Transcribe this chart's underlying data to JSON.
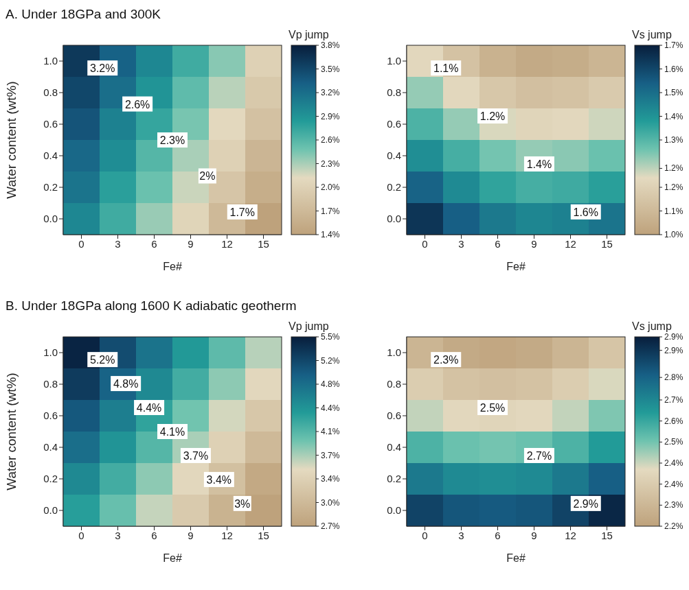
{
  "chart_data": [
    {
      "type": "heatmap",
      "title": "A. Under 18GPa and 300K",
      "xlabel": "Fe#",
      "ylabel": "Water content (wt%)",
      "clabel": "Vp jump",
      "categories": [
        "0",
        "3",
        "6",
        "9",
        "12",
        "15"
      ],
      "y_categories": [
        "1.0",
        "0.8",
        "0.6",
        "0.4",
        "0.2",
        "0.0"
      ],
      "cells": [
        [
          3.6,
          3.3,
          3.0,
          2.7,
          2.4,
          2.0
        ],
        [
          3.5,
          3.2,
          2.9,
          2.55,
          2.25,
          1.9
        ],
        [
          3.4,
          3.05,
          2.75,
          2.45,
          2.1,
          1.8
        ],
        [
          3.25,
          2.95,
          2.6,
          2.3,
          2.0,
          1.65
        ],
        [
          3.15,
          2.8,
          2.5,
          2.2,
          1.85,
          1.55
        ],
        [
          3.0,
          2.7,
          2.35,
          2.05,
          1.7,
          1.4
        ]
      ],
      "clim": [
        1.4,
        3.8
      ],
      "cticks": [
        {
          "value": 1.4,
          "label": "1.4%"
        },
        {
          "value": 1.7,
          "label": "1.7%"
        },
        {
          "value": 2.0,
          "label": "2.0%"
        },
        {
          "value": 2.3,
          "label": "2.3%"
        },
        {
          "value": 2.6,
          "label": "2.6%"
        },
        {
          "value": 2.9,
          "label": "2.9%"
        },
        {
          "value": 3.2,
          "label": "3.2%"
        },
        {
          "value": 3.5,
          "label": "3.5%"
        },
        {
          "value": 3.8,
          "label": "3.8%"
        }
      ],
      "annotations": [
        "3.2%",
        "2.6%",
        "2.3%",
        "2%",
        "1.7%"
      ]
    },
    {
      "type": "heatmap",
      "xlabel": "Fe#",
      "clabel": "Vs jump",
      "categories": [
        "0",
        "3",
        "6",
        "9",
        "12",
        "15"
      ],
      "y_categories": [
        "1.0",
        "0.8",
        "0.6",
        "0.4",
        "0.2",
        "0.0"
      ],
      "cells": [
        [
          1.2,
          1.12,
          1.06,
          1.03,
          1.04,
          1.07
        ],
        [
          1.28,
          1.2,
          1.14,
          1.11,
          1.12,
          1.15
        ],
        [
          1.36,
          1.28,
          1.22,
          1.19,
          1.2,
          1.23
        ],
        [
          1.45,
          1.37,
          1.31,
          1.28,
          1.29,
          1.32
        ],
        [
          1.55,
          1.46,
          1.4,
          1.37,
          1.38,
          1.41
        ],
        [
          1.65,
          1.56,
          1.5,
          1.47,
          1.48,
          1.51
        ]
      ],
      "clim": [
        1.0,
        1.7
      ],
      "cticks": [
        {
          "value": 1.0,
          "label": "1.0%"
        },
        {
          "value": 1.0875,
          "label": "1.1%"
        },
        {
          "value": 1.175,
          "label": "1.2%"
        },
        {
          "value": 1.245,
          "label": "1.2%"
        },
        {
          "value": 1.35,
          "label": "1.3%"
        },
        {
          "value": 1.4375,
          "label": "1.4%"
        },
        {
          "value": 1.525,
          "label": "1.5%"
        },
        {
          "value": 1.6125,
          "label": "1.6%"
        },
        {
          "value": 1.7,
          "label": "1.7%"
        }
      ],
      "annotations": [
        "1.1%",
        "1.2%",
        "1.4%",
        "1.6%"
      ]
    },
    {
      "type": "heatmap",
      "title": "B. Under 18GPa along 1600 K adiabatic geotherm",
      "xlabel": "Fe#",
      "ylabel": "Water content (wt%)",
      "clabel": "Vp jump",
      "categories": [
        "0",
        "3",
        "6",
        "9",
        "12",
        "15"
      ],
      "y_categories": [
        "1.0",
        "0.8",
        "0.6",
        "0.4",
        "0.2",
        "0.0"
      ],
      "cells": [
        [
          5.45,
          5.1,
          4.75,
          4.4,
          4.05,
          3.7
        ],
        [
          5.25,
          4.9,
          4.55,
          4.2,
          3.85,
          3.5
        ],
        [
          5.0,
          4.65,
          4.3,
          3.95,
          3.6,
          3.25
        ],
        [
          4.8,
          4.45,
          4.1,
          3.75,
          3.4,
          3.05
        ],
        [
          4.55,
          4.2,
          3.85,
          3.5,
          3.15,
          2.8
        ],
        [
          4.35,
          4.0,
          3.65,
          3.3,
          2.95,
          2.7
        ]
      ],
      "clim": [
        2.7,
        5.5
      ],
      "cticks": [
        {
          "value": 2.7,
          "label": "2.7%"
        },
        {
          "value": 3.05,
          "label": "3.0%"
        },
        {
          "value": 3.4,
          "label": "3.4%"
        },
        {
          "value": 3.75,
          "label": "3.7%"
        },
        {
          "value": 4.1,
          "label": "4.1%"
        },
        {
          "value": 4.45,
          "label": "4.4%"
        },
        {
          "value": 4.8,
          "label": "4.8%"
        },
        {
          "value": 5.15,
          "label": "5.2%"
        },
        {
          "value": 5.5,
          "label": "5.5%"
        }
      ],
      "annotations": [
        "5.2%",
        "4.8%",
        "4.4%",
        "4.1%",
        "3.7%",
        "3.4%",
        "3%"
      ]
    },
    {
      "type": "heatmap",
      "xlabel": "Fe#",
      "clabel": "Vs jump",
      "categories": [
        "0",
        "3",
        "6",
        "9",
        "12",
        "15"
      ],
      "y_categories": [
        "1.0",
        "0.8",
        "0.6",
        "0.4",
        "0.2",
        "0.0"
      ],
      "cells": [
        [
          2.27,
          2.23,
          2.22,
          2.23,
          2.27,
          2.33
        ],
        [
          2.36,
          2.32,
          2.31,
          2.32,
          2.36,
          2.42
        ],
        [
          2.44,
          2.4,
          2.39,
          2.4,
          2.44,
          2.5
        ],
        [
          2.56,
          2.52,
          2.51,
          2.52,
          2.56,
          2.62
        ],
        [
          2.7,
          2.66,
          2.65,
          2.66,
          2.7,
          2.76
        ],
        [
          2.82,
          2.78,
          2.77,
          2.78,
          2.82,
          2.88
        ]
      ],
      "clim": [
        2.2,
        2.9
      ],
      "cticks": [
        {
          "value": 2.2,
          "label": "2.2%"
        },
        {
          "value": 2.2778,
          "label": "2.3%"
        },
        {
          "value": 2.3556,
          "label": "2.4%"
        },
        {
          "value": 2.4333,
          "label": "2.4%"
        },
        {
          "value": 2.5111,
          "label": "2.5%"
        },
        {
          "value": 2.5889,
          "label": "2.6%"
        },
        {
          "value": 2.6667,
          "label": "2.7%"
        },
        {
          "value": 2.75,
          "label": "2.8%"
        },
        {
          "value": 2.85,
          "label": "2.9%"
        },
        {
          "value": 2.9,
          "label": "2.9%"
        }
      ],
      "annotations": [
        "2.3%",
        "2.5%",
        "2.7%",
        "2.9%"
      ]
    }
  ]
}
